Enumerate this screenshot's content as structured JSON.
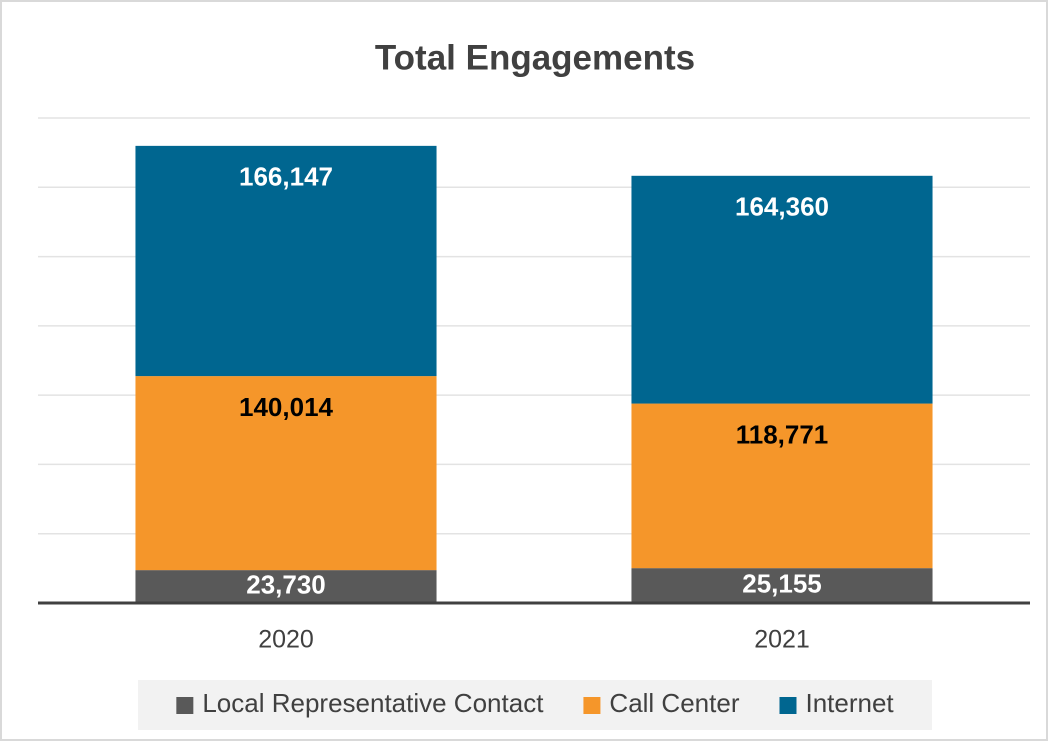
{
  "chart_data": {
    "type": "stacked_bar",
    "title": "Total Engagements",
    "categories": [
      "2020",
      "2021"
    ],
    "series": [
      {
        "name": "Local Representative Contact",
        "color": "#595959",
        "label_color": "#ffffff",
        "values": [
          23730,
          25155
        ],
        "value_labels": [
          "23,730",
          "25,155"
        ]
      },
      {
        "name": "Call Center",
        "color": "#f5962a",
        "label_color": "#000000",
        "values": [
          140014,
          118771
        ],
        "value_labels": [
          "140,014",
          "118,771"
        ]
      },
      {
        "name": "Internet",
        "color": "#006690",
        "label_color": "#ffffff",
        "values": [
          166147,
          164360
        ],
        "value_labels": [
          "166,147",
          "164,360"
        ]
      }
    ],
    "ylim": [
      0,
      350000
    ],
    "yticks": [
      0,
      50000,
      100000,
      150000,
      200000,
      250000,
      300000,
      350000
    ],
    "grid": true,
    "legend": "bottom"
  }
}
